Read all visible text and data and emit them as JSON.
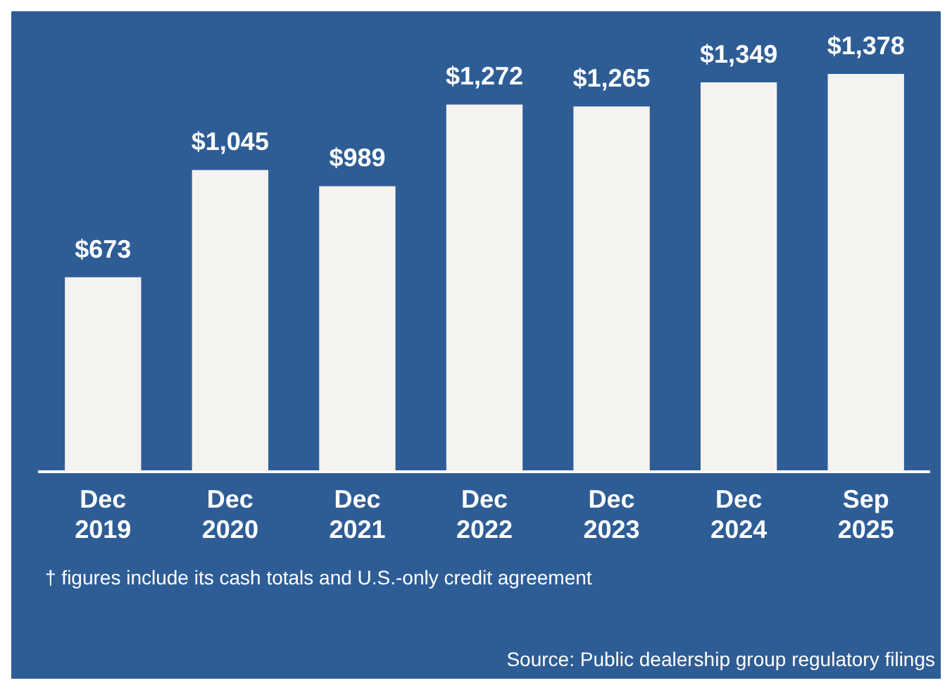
{
  "chart_data": {
    "type": "bar",
    "categories": [
      "Dec 2019",
      "Dec 2020",
      "Dec 2021",
      "Dec 2022",
      "Dec 2023",
      "Dec 2024",
      "Sep 2025"
    ],
    "values": [
      673,
      1045,
      989,
      1272,
      1265,
      1349,
      1378
    ],
    "color": "#f5f3f0",
    "value_labels": [
      "$673",
      "$1,045",
      "$989",
      "$1,272",
      "$1,265",
      "$1,349",
      "$1,378"
    ],
    "annotations": [
      "† figures include its cash totals and U.S.-only credit agreement",
      "Source: Public dealership group regulatory filings"
    ],
    "grid": false,
    "legend": false
  }
}
